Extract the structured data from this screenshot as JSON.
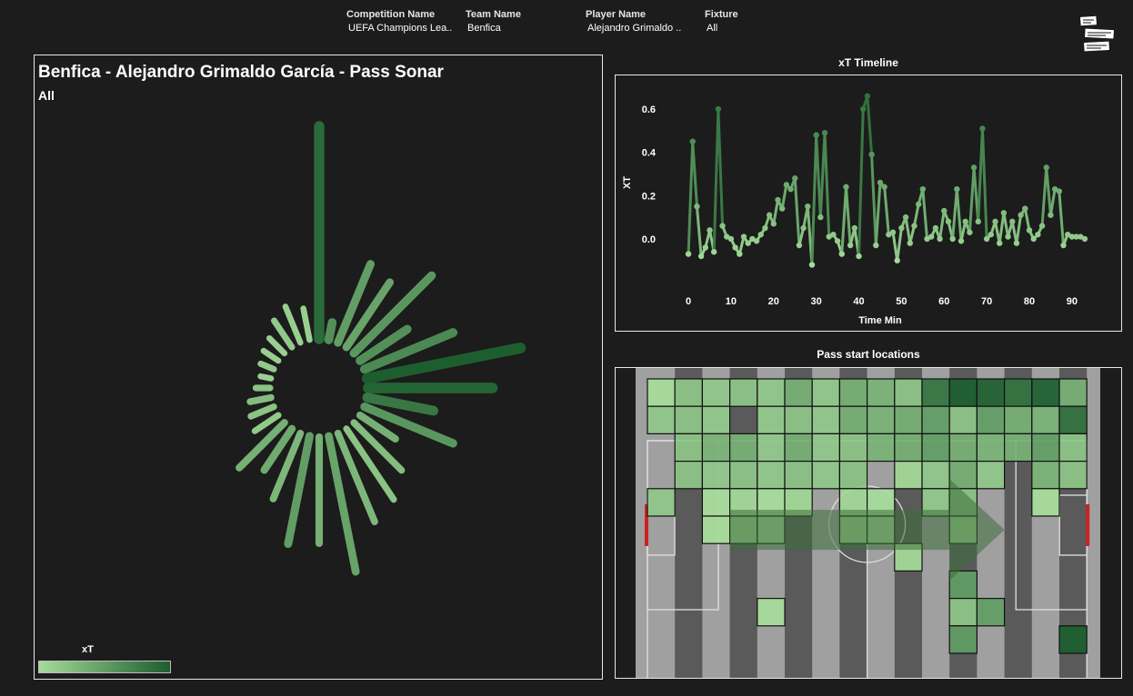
{
  "filters": [
    {
      "label": "Competition Name",
      "value": "UEFA Champions Lea.."
    },
    {
      "label": "Team Name",
      "value": "Benfica"
    },
    {
      "label": "Player Name",
      "value": "Alejandro Grimaldo .."
    },
    {
      "label": "Fixture",
      "value": "All"
    }
  ],
  "sonar": {
    "title": "Benfica - Alejandro Grimaldo García - Pass Sonar",
    "subtitle": "All",
    "legend_title": "xT"
  },
  "timeline": {
    "title": "xT Timeline",
    "xlabel": "Time Min",
    "ylabel": "XT"
  },
  "pitch": {
    "title": "Pass start locations"
  },
  "colors": {
    "background": "#1c1c1c",
    "low": "#a6dc9a",
    "high": "#1c5e2e",
    "goal_post": "#cc2222"
  },
  "chart_data": [
    {
      "type": "line",
      "title": "xT Timeline",
      "xlabel": "Time Min",
      "ylabel": "XT",
      "xlim": [
        -3,
        96
      ],
      "ylim": [
        -0.16,
        0.68
      ],
      "xticks": [
        0,
        10,
        20,
        30,
        40,
        50,
        60,
        70,
        80,
        90
      ],
      "yticks": [
        0.0,
        0.2,
        0.4,
        0.6
      ],
      "ytick_labels": [
        "0.0",
        "0.2",
        "0.4",
        "0.6"
      ],
      "x": [
        0,
        1,
        2,
        3,
        4,
        5,
        6,
        7,
        8,
        9,
        10,
        11,
        12,
        13,
        14,
        15,
        16,
        17,
        18,
        19,
        20,
        21,
        22,
        23,
        24,
        25,
        26,
        27,
        28,
        29,
        30,
        31,
        32,
        33,
        34,
        35,
        36,
        37,
        38,
        39,
        40,
        41,
        42,
        43,
        44,
        45,
        46,
        47,
        48,
        49,
        50,
        51,
        52,
        53,
        54,
        55,
        56,
        57,
        58,
        59,
        60,
        61,
        62,
        63,
        64,
        65,
        66,
        67,
        68,
        69,
        70,
        71,
        72,
        73,
        74,
        75,
        76,
        77,
        78,
        79,
        80,
        81,
        82,
        83,
        84,
        85,
        86,
        87,
        88,
        89,
        90,
        91,
        92,
        93
      ],
      "values": [
        -0.07,
        0.45,
        0.15,
        -0.08,
        -0.04,
        0.04,
        -0.06,
        0.6,
        0.06,
        0.01,
        0.0,
        -0.04,
        -0.07,
        0.01,
        -0.02,
        0.0,
        -0.01,
        0.02,
        0.05,
        0.11,
        0.07,
        0.18,
        0.14,
        0.25,
        0.23,
        0.28,
        -0.03,
        0.05,
        0.15,
        -0.12,
        0.48,
        0.1,
        0.49,
        0.01,
        0.02,
        -0.01,
        -0.07,
        0.24,
        -0.03,
        0.05,
        -0.08,
        0.6,
        0.66,
        0.39,
        -0.03,
        0.26,
        0.24,
        0.02,
        0.03,
        -0.1,
        0.05,
        0.1,
        -0.02,
        0.06,
        0.16,
        0.23,
        0.0,
        0.01,
        0.05,
        0.0,
        0.13,
        0.08,
        0.0,
        0.23,
        -0.01,
        0.08,
        0.03,
        0.33,
        0.08,
        0.51,
        0.0,
        0.02,
        0.08,
        -0.02,
        0.12,
        0.01,
        0.08,
        -0.02,
        0.11,
        0.14,
        0.04,
        0.0,
        0.02,
        0.06,
        0.33,
        0.11,
        0.23,
        0.22,
        -0.03,
        0.02,
        0.01,
        0.01,
        0.01,
        0.0
      ]
    },
    {
      "type": "bar",
      "title": "Benfica - Alejandro Grimaldo García - Pass Sonar",
      "subtitle": "All",
      "legend_title": "xT",
      "series": [
        {
          "values": [
            3.0,
            0.25,
            1.2,
            1.1,
            1.55,
            0.8,
            1.35,
            2.2,
            1.75,
            0.95,
            1.35,
            0.6,
            0.95,
            1.2,
            1.35,
            1.95,
            1.5,
            1.55,
            1.0,
            0.7,
            0.9,
            0.4,
            0.35,
            0.3,
            0.2,
            0.15,
            0.2,
            0.25,
            0.3,
            0.45,
            0.55,
            0.45
          ]
        },
        {
          "name": "xT",
          "values": [
            0.9,
            0.6,
            0.5,
            0.45,
            0.55,
            0.6,
            0.65,
            1.0,
            0.95,
            0.8,
            0.55,
            0.35,
            0.25,
            0.2,
            0.3,
            0.45,
            0.35,
            0.5,
            0.3,
            0.4,
            0.35,
            0.15,
            0.2,
            0.25,
            0.2,
            0.1,
            0.15,
            0.1,
            0.1,
            0.15,
            0.1,
            0.1
          ]
        }
      ]
    },
    {
      "type": "heatmap",
      "title": "Pass start locations",
      "rows": 11,
      "cols": 16,
      "values": [
        [
          1,
          2,
          2,
          2,
          2,
          3,
          2,
          3,
          3,
          2,
          6,
          7,
          7,
          6,
          7,
          3
        ],
        [
          2,
          2,
          2,
          0,
          2,
          2,
          2,
          3,
          3,
          3,
          4,
          2,
          4,
          3,
          3,
          6
        ],
        [
          0,
          2,
          3,
          3,
          2,
          3,
          2,
          2,
          3,
          3,
          4,
          3,
          3,
          3,
          4,
          2
        ],
        [
          0,
          2,
          2,
          2,
          2,
          2,
          2,
          2,
          0,
          1,
          2,
          3,
          2,
          0,
          3,
          2
        ],
        [
          2,
          0,
          1,
          1,
          1,
          1,
          0,
          1,
          1,
          0,
          2,
          2,
          0,
          0,
          1,
          0
        ],
        [
          0,
          0,
          1,
          1,
          1,
          0,
          0,
          1,
          1,
          0,
          0,
          1,
          0,
          0,
          0,
          0
        ],
        [
          0,
          0,
          0,
          0,
          0,
          0,
          0,
          0,
          0,
          1,
          0,
          0,
          0,
          0,
          0,
          0
        ],
        [
          0,
          0,
          0,
          0,
          0,
          0,
          0,
          0,
          0,
          0,
          0,
          4,
          0,
          0,
          0,
          0
        ],
        [
          0,
          0,
          0,
          0,
          1,
          0,
          0,
          0,
          0,
          0,
          0,
          2,
          4,
          0,
          0,
          0
        ],
        [
          0,
          0,
          0,
          0,
          0,
          0,
          0,
          0,
          0,
          0,
          0,
          4,
          0,
          0,
          0,
          7
        ],
        [
          0,
          0,
          0,
          0,
          0,
          0,
          0,
          0,
          0,
          0,
          0,
          0,
          0,
          0,
          0,
          0
        ]
      ],
      "arrow": {
        "from_col": 3,
        "to_col": 13,
        "row": 5
      }
    }
  ]
}
